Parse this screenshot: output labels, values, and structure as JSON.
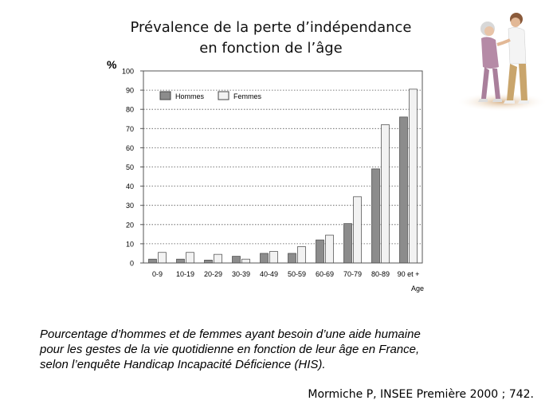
{
  "title_lines": [
    "Prévalence de la perte d’indépendance",
    "en fonction de l’âge"
  ],
  "caption_lines": [
    "Pourcentage d’hommes et de femmes ayant besoin d’une aide humaine",
    "pour les gestes de la vie quotidienne en fonction de leur âge en France,",
    "selon l’enquête Handicap Incapacité Déficience (HIS)."
  ],
  "source": "Mormiche P, INSEE Première 2000 ; 742.",
  "image": {
    "description": "caregiver-with-elderly-woman-photo"
  },
  "colors": {
    "hommes": "#8c8c8c",
    "femmes": "#f2f2f2",
    "border": "#444444"
  },
  "chart_data": {
    "type": "bar",
    "ylabel": "%",
    "xlabel": "Age",
    "ylim": [
      0,
      100
    ],
    "yticks": [
      0,
      10,
      20,
      30,
      40,
      50,
      60,
      70,
      80,
      90,
      100
    ],
    "grid": "horizontal-dotted",
    "legend_position": "top-left",
    "categories": [
      "0-9",
      "10-19",
      "20-29",
      "30-39",
      "40-49",
      "50-59",
      "60-69",
      "70-79",
      "80-89",
      "90 et +"
    ],
    "series": [
      {
        "name": "Hommes",
        "values": [
          2,
          2,
          1.5,
          3.5,
          5,
          5,
          12,
          20.5,
          49,
          76
        ]
      },
      {
        "name": "Femmes",
        "values": [
          5.5,
          5.5,
          4.5,
          2,
          6,
          8.5,
          14.5,
          34.5,
          72,
          90.5
        ]
      }
    ]
  }
}
